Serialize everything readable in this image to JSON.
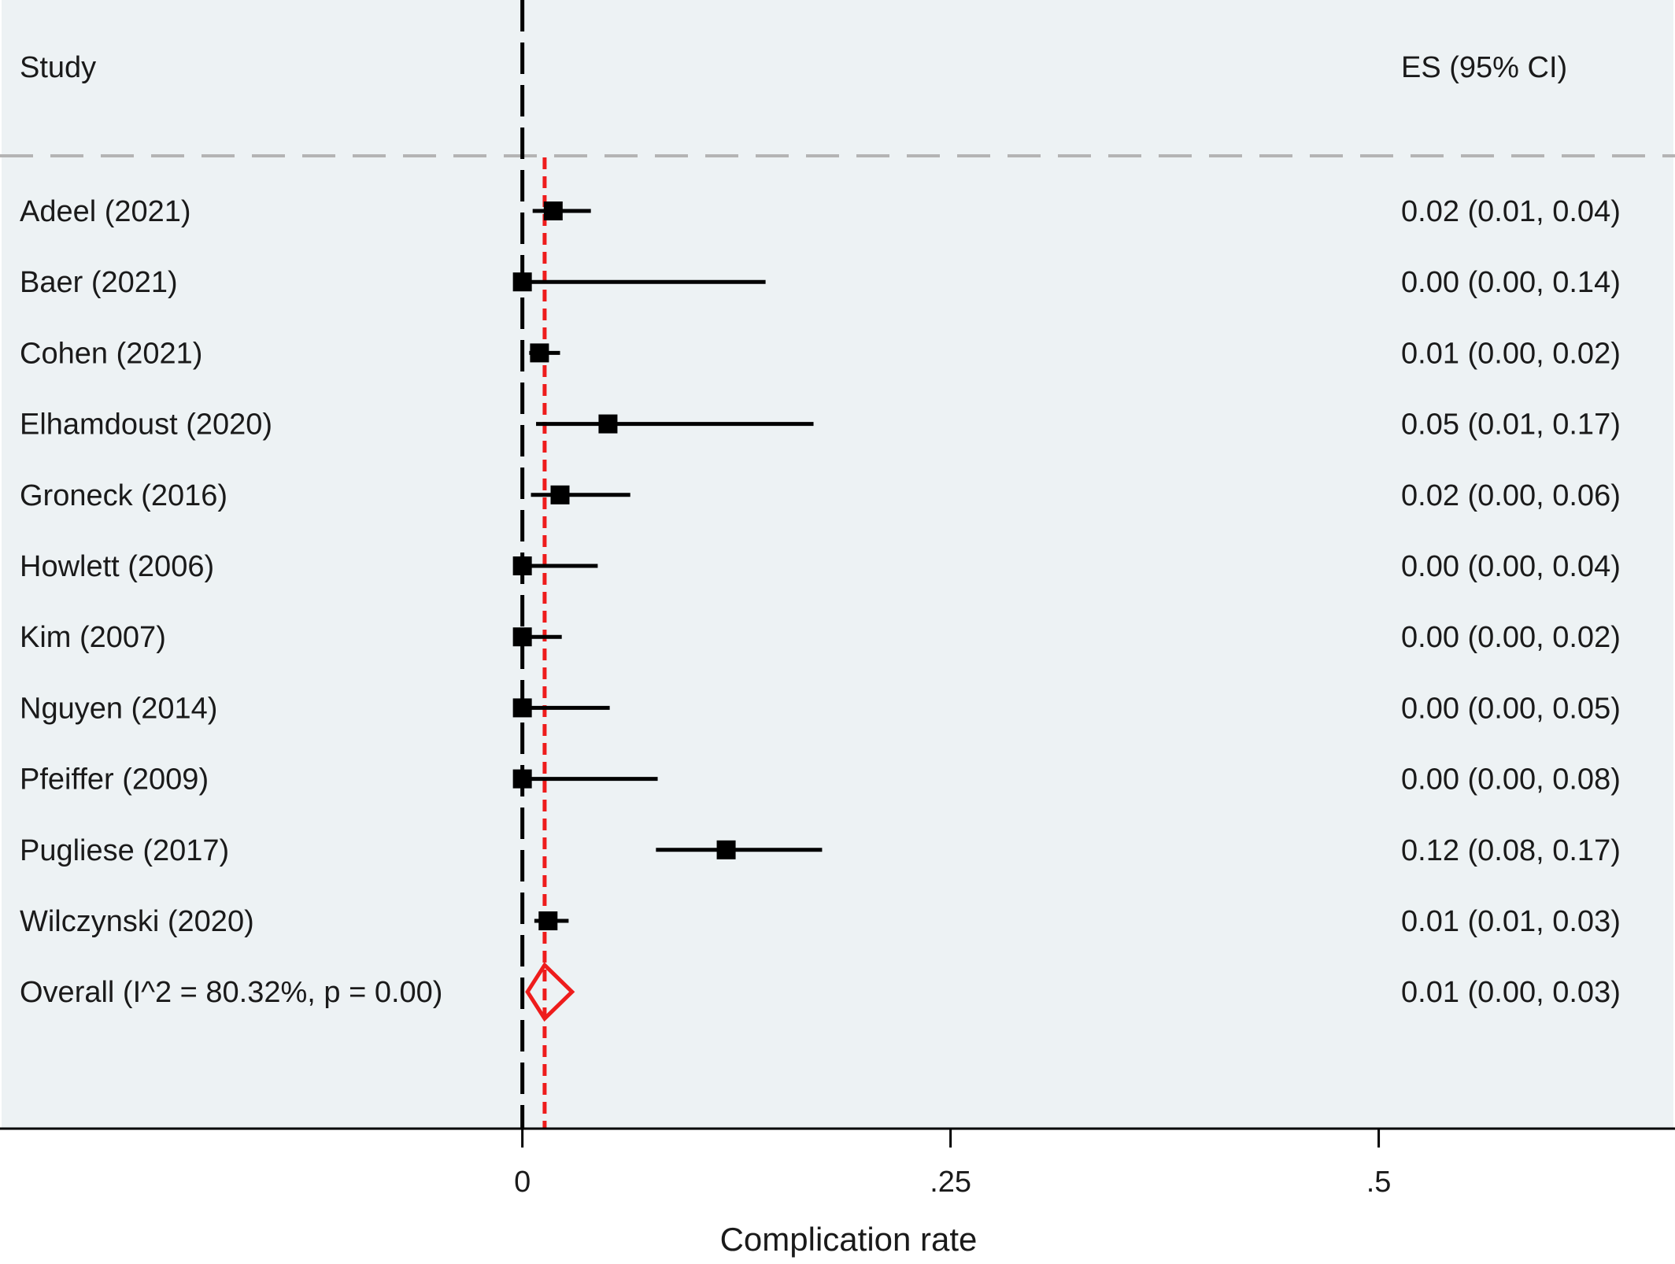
{
  "chart_data": {
    "type": "forest",
    "headers": {
      "study": "Study",
      "estimate": "ES (95% CI)"
    },
    "xlabel": "Complication rate",
    "xlim": [
      -0.305,
      0.673
    ],
    "xticks": [
      {
        "value": 0,
        "label": "0"
      },
      {
        "value": 0.25,
        "label": ".25"
      },
      {
        "value": 0.5,
        "label": ".5"
      }
    ],
    "null_line": 0,
    "overall_line": 0.013,
    "studies": [
      {
        "label": "Adeel  (2021)",
        "es": 0.018,
        "lo": 0.006,
        "hi": 0.04,
        "text": "0.02 (0.01, 0.04)"
      },
      {
        "label": "Baer  (2021)",
        "es": 0.0,
        "lo": 0.0,
        "hi": 0.142,
        "text": "0.00 (0.00, 0.14)"
      },
      {
        "label": "Cohen  (2021)",
        "es": 0.01,
        "lo": 0.004,
        "hi": 0.022,
        "text": "0.01 (0.00, 0.02)"
      },
      {
        "label": "Elhamdoust  (2020)",
        "es": 0.05,
        "lo": 0.008,
        "hi": 0.17,
        "text": "0.05 (0.01, 0.17)"
      },
      {
        "label": "Groneck  (2016)",
        "es": 0.022,
        "lo": 0.005,
        "hi": 0.063,
        "text": "0.02 (0.00, 0.06)"
      },
      {
        "label": "Howlett  (2006)",
        "es": 0.0,
        "lo": 0.0,
        "hi": 0.044,
        "text": "0.00 (0.00, 0.04)"
      },
      {
        "label": "Kim  (2007)",
        "es": 0.0,
        "lo": 0.0,
        "hi": 0.023,
        "text": "0.00 (0.00, 0.02)"
      },
      {
        "label": "Nguyen  (2014)",
        "es": 0.0,
        "lo": 0.0,
        "hi": 0.051,
        "text": "0.00 (0.00, 0.05)"
      },
      {
        "label": "Pfeiffer  (2009)",
        "es": 0.0,
        "lo": 0.0,
        "hi": 0.079,
        "text": "0.00 (0.00, 0.08)"
      },
      {
        "label": "Pugliese  (2017)",
        "es": 0.119,
        "lo": 0.078,
        "hi": 0.175,
        "text": "0.12 (0.08, 0.17)"
      },
      {
        "label": "Wilczynski  (2020)",
        "es": 0.015,
        "lo": 0.007,
        "hi": 0.027,
        "text": "0.01 (0.01, 0.03)"
      }
    ],
    "overall": {
      "label": "Overall  (I^2 = 80.32%, p = 0.00)",
      "es": 0.013,
      "lo": 0.003,
      "hi": 0.029,
      "text": "0.01 (0.00, 0.03)"
    },
    "colors": {
      "panel_bg": "#edf2f4",
      "marker": "#000000",
      "overall": "#ee1c1c",
      "reference_line": "#000000",
      "separator": "#b4b4b4",
      "text": "#1a1a1a"
    }
  }
}
